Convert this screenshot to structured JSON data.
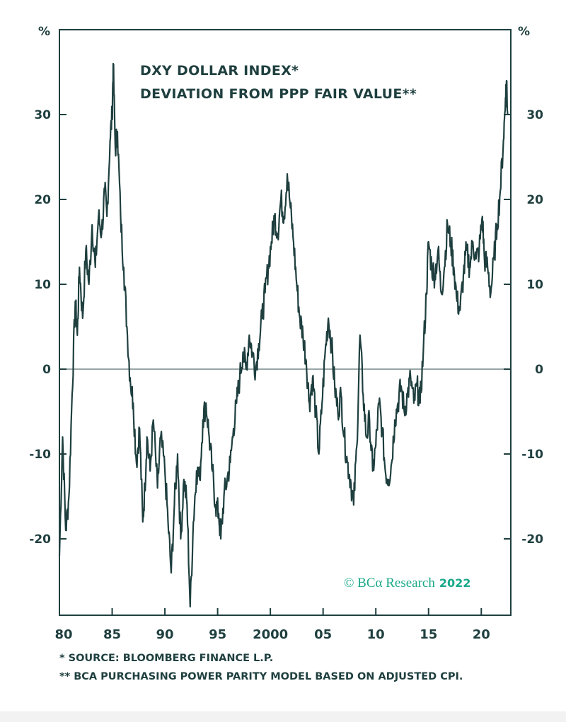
{
  "chart_data": {
    "type": "line",
    "title_lines": [
      "DXY DOLLAR INDEX*",
      "DEVIATION FROM PPP FAIR VALUE**"
    ],
    "y_unit_left": "%",
    "y_unit_right": "%",
    "ylim": [
      -29,
      40
    ],
    "xlim": [
      1980.0,
      2022.8
    ],
    "y_ticks": [
      30,
      20,
      10,
      0,
      -10,
      -20
    ],
    "y_tick_labels": [
      "30",
      "20",
      "10",
      "0",
      "-10",
      "-20"
    ],
    "x_ticks": [
      1980,
      1985,
      1990,
      1995,
      2000,
      2005,
      2010,
      2015,
      2020
    ],
    "x_tick_labels": [
      "80",
      "85",
      "90",
      "95",
      "2000",
      "05",
      "10",
      "15",
      "20"
    ],
    "zero_line": true,
    "series": [
      {
        "name": "DXY deviation from PPP fair value",
        "points": [
          [
            1980.0,
            -22
          ],
          [
            1980.3,
            -8
          ],
          [
            1980.6,
            -19
          ],
          [
            1980.9,
            -15
          ],
          [
            1981.2,
            -3
          ],
          [
            1981.5,
            8
          ],
          [
            1981.7,
            4
          ],
          [
            1981.9,
            12
          ],
          [
            1982.2,
            6
          ],
          [
            1982.5,
            14
          ],
          [
            1982.8,
            10
          ],
          [
            1983.1,
            17
          ],
          [
            1983.4,
            12
          ],
          [
            1983.7,
            18
          ],
          [
            1984.0,
            16
          ],
          [
            1984.3,
            21
          ],
          [
            1984.5,
            18
          ],
          [
            1984.8,
            27
          ],
          [
            1985.0,
            30
          ],
          [
            1985.1,
            36
          ],
          [
            1985.3,
            26
          ],
          [
            1985.5,
            28
          ],
          [
            1985.8,
            18
          ],
          [
            1986.1,
            12
          ],
          [
            1986.4,
            5
          ],
          [
            1986.7,
            -1
          ],
          [
            1987.0,
            -4
          ],
          [
            1987.3,
            -11
          ],
          [
            1987.6,
            -7
          ],
          [
            1987.9,
            -18
          ],
          [
            1988.1,
            -14
          ],
          [
            1988.3,
            -8
          ],
          [
            1988.6,
            -12
          ],
          [
            1988.9,
            -6
          ],
          [
            1989.3,
            -14
          ],
          [
            1989.6,
            -8
          ],
          [
            1990.0,
            -12
          ],
          [
            1990.3,
            -18
          ],
          [
            1990.6,
            -24
          ],
          [
            1990.9,
            -16
          ],
          [
            1991.2,
            -10
          ],
          [
            1991.5,
            -20
          ],
          [
            1991.8,
            -13
          ],
          [
            1992.1,
            -16
          ],
          [
            1992.4,
            -28
          ],
          [
            1992.7,
            -18
          ],
          [
            1993.0,
            -12
          ],
          [
            1993.3,
            -13
          ],
          [
            1993.6,
            -6
          ],
          [
            1993.9,
            -4
          ],
          [
            1994.2,
            -8
          ],
          [
            1994.5,
            -12
          ],
          [
            1994.8,
            -16
          ],
          [
            1995.1,
            -17
          ],
          [
            1995.3,
            -20
          ],
          [
            1995.6,
            -15
          ],
          [
            1995.9,
            -13
          ],
          [
            1996.2,
            -11
          ],
          [
            1996.5,
            -7
          ],
          [
            1996.8,
            -4
          ],
          [
            1997.1,
            -1
          ],
          [
            1997.4,
            2
          ],
          [
            1997.7,
            0
          ],
          [
            1998.0,
            4
          ],
          [
            1998.3,
            2
          ],
          [
            1998.6,
            0
          ],
          [
            1998.9,
            3
          ],
          [
            1999.2,
            6
          ],
          [
            1999.5,
            9
          ],
          [
            1999.8,
            12
          ],
          [
            2000.1,
            15
          ],
          [
            2000.4,
            18
          ],
          [
            2000.7,
            16
          ],
          [
            2001.0,
            20
          ],
          [
            2001.3,
            18
          ],
          [
            2001.6,
            23
          ],
          [
            2001.9,
            19
          ],
          [
            2002.2,
            15
          ],
          [
            2002.5,
            10
          ],
          [
            2002.8,
            6
          ],
          [
            2003.1,
            4
          ],
          [
            2003.4,
            1
          ],
          [
            2003.7,
            -4
          ],
          [
            2004.0,
            -1
          ],
          [
            2004.3,
            -5
          ],
          [
            2004.6,
            -10
          ],
          [
            2004.9,
            -4
          ],
          [
            2005.2,
            2
          ],
          [
            2005.5,
            6
          ],
          [
            2005.8,
            3
          ],
          [
            2006.1,
            -2
          ],
          [
            2006.4,
            -5
          ],
          [
            2006.7,
            -3
          ],
          [
            2007.0,
            -8
          ],
          [
            2007.3,
            -11
          ],
          [
            2007.6,
            -13
          ],
          [
            2007.9,
            -16
          ],
          [
            2008.2,
            -9
          ],
          [
            2008.5,
            4
          ],
          [
            2008.8,
            -3
          ],
          [
            2009.1,
            -8
          ],
          [
            2009.4,
            -6
          ],
          [
            2009.7,
            -12
          ],
          [
            2010.0,
            -9
          ],
          [
            2010.3,
            -4
          ],
          [
            2010.6,
            -7
          ],
          [
            2010.9,
            -12
          ],
          [
            2011.2,
            -13
          ],
          [
            2011.5,
            -11
          ],
          [
            2011.8,
            -6
          ],
          [
            2012.1,
            -4
          ],
          [
            2012.4,
            -2
          ],
          [
            2012.7,
            -5
          ],
          [
            2013.0,
            -3
          ],
          [
            2013.3,
            -1
          ],
          [
            2013.6,
            -4
          ],
          [
            2013.9,
            -2
          ],
          [
            2014.2,
            -4
          ],
          [
            2014.5,
            2
          ],
          [
            2014.8,
            9
          ],
          [
            2015.0,
            15
          ],
          [
            2015.3,
            12
          ],
          [
            2015.6,
            11
          ],
          [
            2015.9,
            14
          ],
          [
            2016.2,
            9
          ],
          [
            2016.5,
            12
          ],
          [
            2016.8,
            17
          ],
          [
            2017.1,
            15
          ],
          [
            2017.4,
            12
          ],
          [
            2017.7,
            8
          ],
          [
            2018.0,
            7
          ],
          [
            2018.3,
            11
          ],
          [
            2018.6,
            14
          ],
          [
            2018.9,
            12
          ],
          [
            2019.2,
            15
          ],
          [
            2019.5,
            13
          ],
          [
            2019.8,
            14
          ],
          [
            2020.1,
            18
          ],
          [
            2020.3,
            13
          ],
          [
            2020.6,
            12
          ],
          [
            2020.9,
            9
          ],
          [
            2021.2,
            13
          ],
          [
            2021.5,
            17
          ],
          [
            2021.8,
            21
          ],
          [
            2022.1,
            27
          ],
          [
            2022.3,
            32
          ],
          [
            2022.4,
            34
          ],
          [
            2022.5,
            30
          ]
        ]
      }
    ],
    "line_color": "#1f3f3f",
    "credit_main": "© BCα Research",
    "credit_year": "2022"
  },
  "footnotes": {
    "source": "*  SOURCE: BLOOMBERG FINANCE L.P.",
    "model": "** BCA PURCHASING POWER PARITY MODEL BASED ON ADJUSTED CPI."
  }
}
